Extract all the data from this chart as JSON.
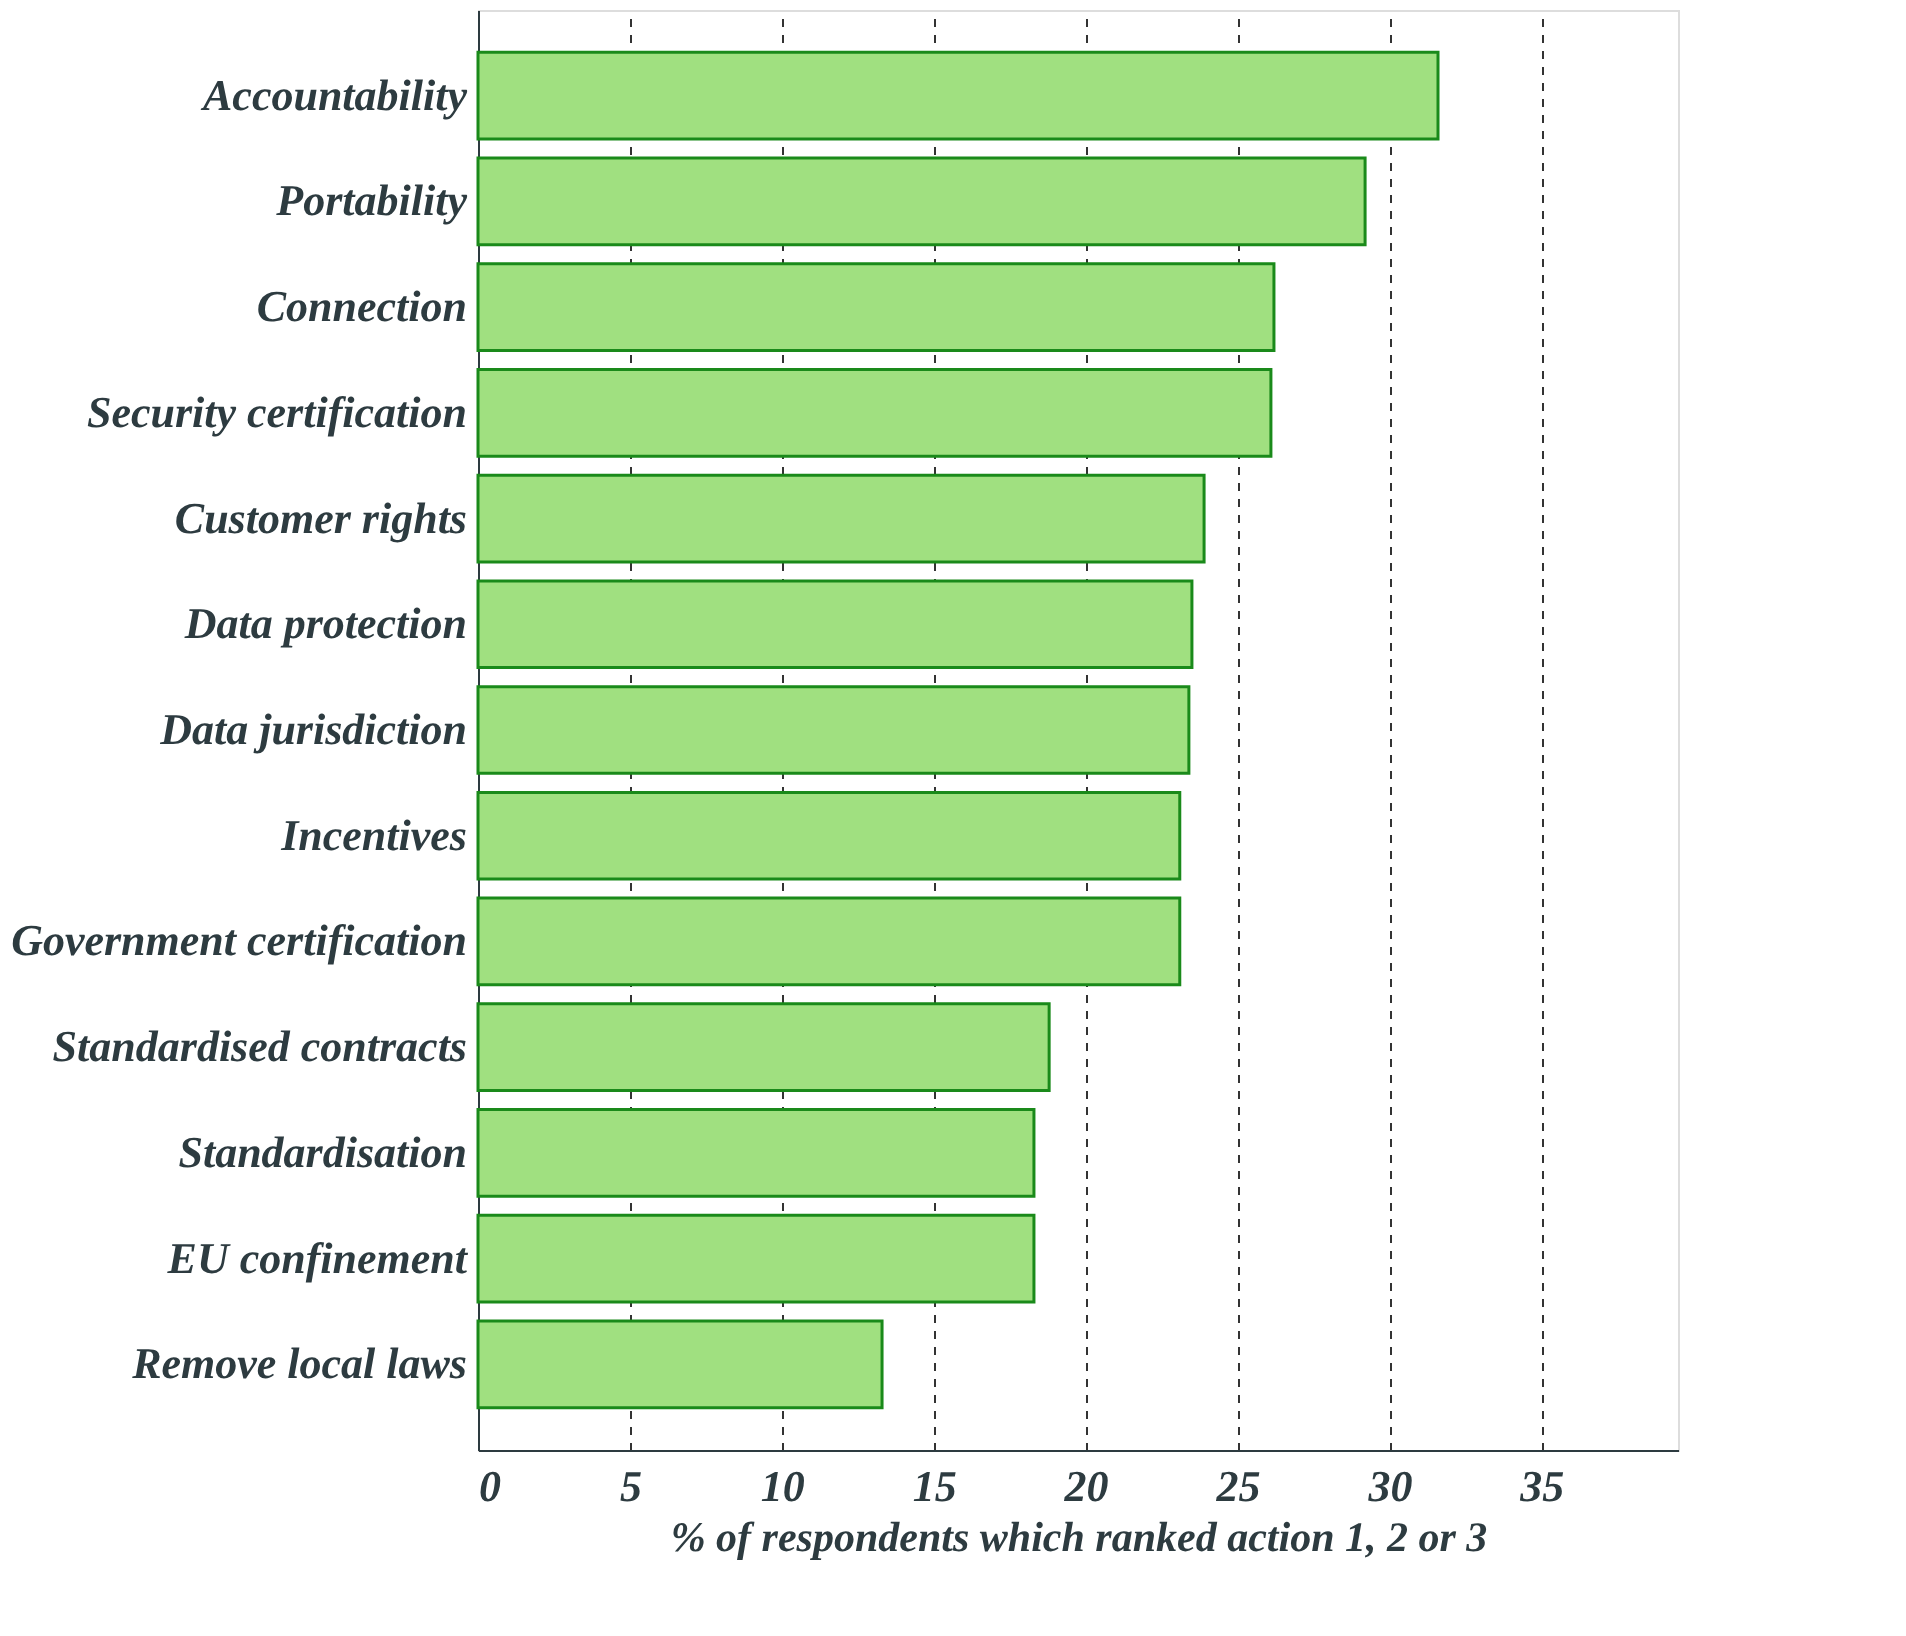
{
  "chart_data": {
    "type": "bar",
    "orientation": "horizontal",
    "xlabel": "% of respondents which ranked action 1, 2 or 3",
    "categories": [
      "Accountability",
      "Portability",
      "Connection",
      "Security certification",
      "Customer rights",
      "Data protection",
      "Data jurisdiction",
      "Incentives",
      "Government certification",
      "Standardised contracts",
      "Standardisation",
      "EU confinement",
      "Remove local laws"
    ],
    "values": [
      31.6,
      29.2,
      26.2,
      26.1,
      23.9,
      23.5,
      23.4,
      23.1,
      23.1,
      18.8,
      18.3,
      18.3,
      13.3
    ],
    "color": "#a0e080",
    "xlim": [
      0,
      39.5
    ],
    "xticks": [
      0,
      5,
      10,
      15,
      20,
      25,
      30,
      35
    ],
    "grid": "x"
  }
}
